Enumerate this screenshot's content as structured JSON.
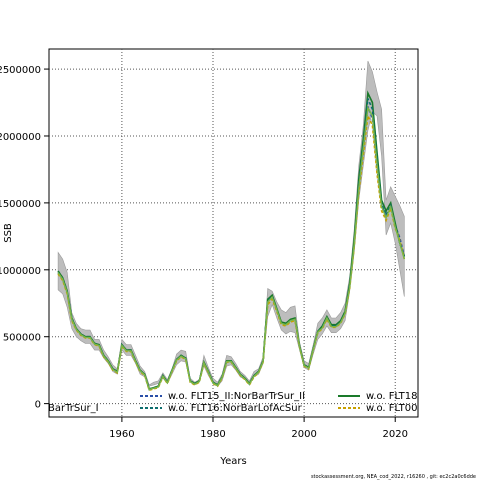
{
  "chart_data": {
    "type": "line",
    "xlabel": "Years",
    "ylabel": "SSB",
    "xlim": [
      1944,
      2025
    ],
    "ylim": [
      -100000,
      2650000
    ],
    "grid": true,
    "x_ticks": [
      1960,
      1980,
      2000,
      2020
    ],
    "y_ticks": [
      0,
      500000,
      1000000,
      1500000,
      2000000,
      2500000
    ],
    "y_tick_labels": [
      "0",
      "500000",
      "1000000",
      "1500000",
      "2000000",
      "2500000"
    ],
    "years": [
      1946,
      1947,
      1948,
      1949,
      1950,
      1951,
      1952,
      1953,
      1954,
      1955,
      1956,
      1957,
      1958,
      1959,
      1960,
      1961,
      1962,
      1963,
      1964,
      1965,
      1966,
      1967,
      1968,
      1969,
      1970,
      1971,
      1972,
      1973,
      1974,
      1975,
      1976,
      1977,
      1978,
      1979,
      1980,
      1981,
      1982,
      1983,
      1984,
      1985,
      1986,
      1987,
      1988,
      1989,
      1990,
      1991,
      1992,
      1993,
      1994,
      1995,
      1996,
      1997,
      1998,
      1999,
      2000,
      2001,
      2002,
      2003,
      2004,
      2005,
      2006,
      2007,
      2008,
      2009,
      2010,
      2011,
      2012,
      2013,
      2014,
      2015,
      2016,
      2017,
      2018,
      2019,
      2020,
      2021,
      2022
    ],
    "ci_lower": [
      850000,
      820000,
      720000,
      560000,
      500000,
      470000,
      450000,
      450000,
      400000,
      400000,
      340000,
      300000,
      240000,
      220000,
      400000,
      360000,
      360000,
      300000,
      220000,
      200000,
      130000,
      140000,
      150000,
      190000,
      150000,
      220000,
      290000,
      320000,
      310000,
      160000,
      140000,
      160000,
      280000,
      210000,
      150000,
      130000,
      170000,
      280000,
      290000,
      250000,
      200000,
      180000,
      140000,
      200000,
      220000,
      300000,
      650000,
      740000,
      640000,
      550000,
      520000,
      540000,
      530000,
      400000,
      270000,
      250000,
      370000,
      480000,
      520000,
      580000,
      530000,
      530000,
      560000,
      620000,
      840000,
      1130000,
      1520000,
      1780000,
      2040000,
      2180000,
      2150000,
      1850000,
      1260000,
      1350000,
      1200000,
      1000000,
      800000
    ],
    "ci_upper": [
      1130000,
      1080000,
      980000,
      680000,
      600000,
      560000,
      550000,
      550000,
      480000,
      480000,
      400000,
      350000,
      290000,
      260000,
      480000,
      440000,
      440000,
      360000,
      280000,
      240000,
      140000,
      160000,
      170000,
      230000,
      180000,
      260000,
      370000,
      400000,
      390000,
      190000,
      160000,
      180000,
      360000,
      270000,
      190000,
      160000,
      220000,
      360000,
      350000,
      300000,
      240000,
      210000,
      170000,
      240000,
      260000,
      350000,
      860000,
      840000,
      760000,
      700000,
      680000,
      720000,
      730000,
      460000,
      320000,
      300000,
      440000,
      600000,
      640000,
      700000,
      640000,
      640000,
      680000,
      750000,
      950000,
      1300000,
      1780000,
      2080000,
      2560000,
      2480000,
      2330000,
      2200000,
      1520000,
      1620000,
      1550000,
      1480000,
      1400000
    ],
    "series": [
      {
        "name": "w.o. FLT15_II:NorBarTrSur_II",
        "color": "#2a4fa8",
        "style": "dashed",
        "values": [
          990000,
          940000,
          840000,
          640000,
          560000,
          520000,
          500000,
          500000,
          450000,
          440000,
          360000,
          320000,
          260000,
          240000,
          440000,
          400000,
          400000,
          320000,
          250000,
          220000,
          110000,
          120000,
          130000,
          210000,
          160000,
          250000,
          330000,
          360000,
          340000,
          170000,
          150,
          170000,
          310000,
          240000,
          160000,
          140000,
          200000,
          320000,
          320000,
          270000,
          220000,
          190000,
          150000,
          210000,
          240000,
          320000,
          760000,
          800000,
          700000,
          600000,
          590000,
          620000,
          630000,
          430000,
          290000,
          270000,
          410000,
          540000,
          570000,
          640000,
          580000,
          580000,
          610000,
          680000,
          880000,
          1200000,
          1620000,
          1900000,
          2220000,
          2130000,
          1760000,
          1480000,
          1400000,
          1480000,
          1330000,
          1240000,
          1100000
        ]
      },
      {
        "name": "w.o. FLT18",
        "color": "#1a7a2a",
        "style": "solid",
        "values": [
          990000,
          940000,
          840000,
          640000,
          560000,
          520000,
          500000,
          500000,
          450000,
          440000,
          360000,
          320000,
          260000,
          240000,
          440000,
          400000,
          400000,
          320000,
          250000,
          220000,
          110000,
          120000,
          130000,
          210000,
          160000,
          250000,
          330000,
          360000,
          340000,
          170000,
          150000,
          170000,
          310000,
          240000,
          160000,
          140000,
          200000,
          320000,
          320000,
          270000,
          220000,
          190000,
          150000,
          210000,
          240000,
          320000,
          780000,
          810000,
          710000,
          610000,
          600000,
          630000,
          640000,
          430000,
          290000,
          270000,
          410000,
          540000,
          580000,
          650000,
          590000,
          590000,
          620000,
          690000,
          900000,
          1230000,
          1680000,
          1980000,
          2320000,
          2250000,
          1880000,
          1520000,
          1440000,
          1500000,
          1350000,
          1200000,
          1100000
        ]
      },
      {
        "name": "w.o. FLT16:NorBarLofAcSur",
        "color": "#0d6e6e",
        "style": "dashed",
        "values": [
          980000,
          930000,
          830000,
          630000,
          555000,
          515000,
          495000,
          495000,
          445000,
          435000,
          355000,
          315000,
          255000,
          235000,
          435000,
          395000,
          395000,
          315000,
          245000,
          215000,
          105000,
          115000,
          125000,
          205000,
          155000,
          245000,
          325000,
          355000,
          335000,
          165000,
          145000,
          165000,
          305000,
          235000,
          155000,
          135000,
          195000,
          315000,
          315000,
          265000,
          215000,
          185000,
          145000,
          205000,
          235000,
          315000,
          770000,
          800000,
          700000,
          600000,
          590000,
          620000,
          630000,
          425000,
          285000,
          265000,
          405000,
          535000,
          570000,
          640000,
          580000,
          580000,
          610000,
          680000,
          880000,
          1200000,
          1640000,
          1940000,
          2280000,
          2200000,
          1840000,
          1490000,
          1410000,
          1480000,
          1330000,
          1200000,
          1090000
        ]
      },
      {
        "name": "w.o. FLT00",
        "color": "#c8a000",
        "style": "dashed",
        "values": [
          970000,
          920000,
          820000,
          620000,
          550000,
          510000,
          490000,
          490000,
          440000,
          430000,
          350000,
          310000,
          250000,
          230000,
          430000,
          390000,
          390000,
          310000,
          240000,
          210000,
          100000,
          110000,
          120000,
          200000,
          150000,
          240000,
          320000,
          350000,
          330000,
          160000,
          140000,
          160000,
          300000,
          230000,
          150000,
          130000,
          190000,
          310000,
          310000,
          260000,
          210000,
          180000,
          140000,
          200000,
          230000,
          310000,
          740000,
          780000,
          690000,
          590000,
          580000,
          610000,
          620000,
          420000,
          280000,
          260000,
          400000,
          530000,
          560000,
          630000,
          570000,
          570000,
          600000,
          670000,
          860000,
          1170000,
          1580000,
          1860000,
          2150000,
          2080000,
          1720000,
          1440000,
          1370000,
          1460000,
          1310000,
          1220000,
          1080000
        ]
      },
      {
        "name": "",
        "color": "#7ab648",
        "style": "solid",
        "values": [
          980000,
          930000,
          830000,
          630000,
          555000,
          515000,
          495000,
          495000,
          445000,
          435000,
          355000,
          315000,
          255000,
          235000,
          435000,
          395000,
          395000,
          315000,
          245000,
          215000,
          105000,
          115000,
          125000,
          205000,
          155000,
          245000,
          325000,
          355000,
          335000,
          165000,
          145000,
          165000,
          305000,
          235000,
          155000,
          135000,
          195000,
          315000,
          315000,
          265000,
          215000,
          185000,
          145000,
          205000,
          235000,
          315000,
          760000,
          795000,
          700000,
          600000,
          590000,
          620000,
          630000,
          425000,
          285000,
          265000,
          405000,
          535000,
          565000,
          640000,
          575000,
          575000,
          605000,
          675000,
          870000,
          1190000,
          1610000,
          1910000,
          2210000,
          2150000,
          1790000,
          1470000,
          1390000,
          1470000,
          1320000,
          1200000,
          1080000
        ]
      }
    ],
    "legend_items": [
      {
        "label": "BarTrSur_I",
        "color": ""
      },
      {
        "label": "w.o. FLT15_II:NorBarTrSur_II",
        "color": "#2a4fa8"
      },
      {
        "label": "w.o. FLT16:NorBarLofAcSur",
        "color": "#0d6e6e"
      },
      {
        "label": "w.o. FLT18",
        "color": "#1a7a2a"
      },
      {
        "label": "w.o. FLT00",
        "color": "#c8a000"
      }
    ],
    "footer": "stockassessment.org, NEA_cod_2022, r16260 , git: ec2c2a0c6dde"
  }
}
